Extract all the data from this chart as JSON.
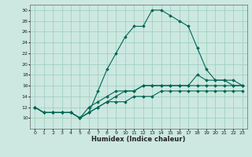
{
  "xlabel": "Humidex (Indice chaleur)",
  "background_color": "#cce8e0",
  "grid_color": "#99ccbb",
  "line_color": "#006655",
  "xlim": [
    -0.5,
    23.5
  ],
  "ylim": [
    8,
    31
  ],
  "yticks": [
    10,
    12,
    14,
    16,
    18,
    20,
    22,
    24,
    26,
    28,
    30
  ],
  "xticks": [
    0,
    1,
    2,
    3,
    4,
    5,
    6,
    7,
    8,
    9,
    10,
    11,
    12,
    13,
    14,
    15,
    16,
    17,
    18,
    19,
    20,
    21,
    22,
    23
  ],
  "series": [
    [
      12,
      11,
      11,
      11,
      11,
      10,
      11,
      15,
      19,
      22,
      25,
      27,
      27,
      30,
      30,
      29,
      28,
      27,
      23,
      19,
      17,
      17,
      16,
      16
    ],
    [
      12,
      11,
      11,
      11,
      11,
      10,
      11,
      12,
      13,
      14,
      15,
      15,
      16,
      16,
      16,
      16,
      16,
      16,
      16,
      16,
      16,
      16,
      16,
      16
    ],
    [
      12,
      11,
      11,
      11,
      11,
      10,
      11,
      12,
      13,
      13,
      13,
      14,
      14,
      14,
      15,
      15,
      15,
      15,
      15,
      15,
      15,
      15,
      15,
      15
    ],
    [
      12,
      11,
      11,
      11,
      11,
      10,
      12,
      13,
      14,
      15,
      15,
      15,
      16,
      16,
      16,
      16,
      16,
      16,
      18,
      17,
      17,
      17,
      17,
      16
    ]
  ]
}
